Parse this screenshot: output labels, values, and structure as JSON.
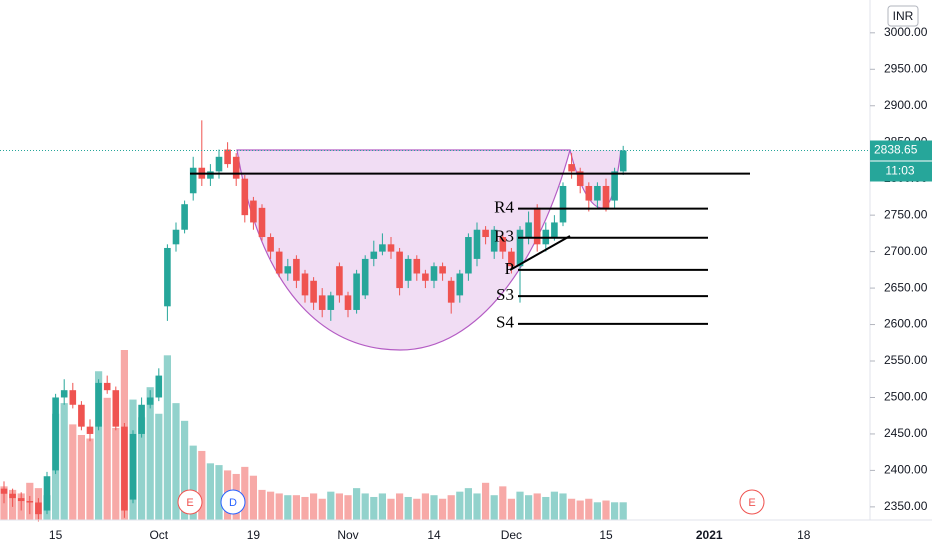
{
  "chart_data": {
    "type": "candlestick",
    "currency": "INR",
    "countdown": "11:03",
    "up_color": "#26a69a",
    "down_color": "#ef5350",
    "ylim": [
      2332,
      3045
    ],
    "yticks": [
      {
        "value": 2350,
        "label": "2350.00"
      },
      {
        "value": 2400,
        "label": "2400.00"
      },
      {
        "value": 2450,
        "label": "2450.00"
      },
      {
        "value": 2500,
        "label": "2500.00"
      },
      {
        "value": 2550,
        "label": "2550.00"
      },
      {
        "value": 2600,
        "label": "2600.00"
      },
      {
        "value": 2650,
        "label": "2650.00"
      },
      {
        "value": 2700,
        "label": "2700.00"
      },
      {
        "value": 2750,
        "label": "2750.00"
      },
      {
        "value": 2800,
        "label": "2800.00"
      },
      {
        "value": 2850,
        "label": "2850.00"
      },
      {
        "value": 2900,
        "label": "2900.00"
      },
      {
        "value": 2950,
        "label": "2950.00"
      },
      {
        "value": 3000,
        "label": "3000.00"
      }
    ],
    "categories": [
      null,
      null,
      null,
      null,
      null,
      null,
      "15",
      null,
      null,
      null,
      null,
      null,
      null,
      null,
      null,
      null,
      null,
      null,
      "Oct",
      null,
      null,
      null,
      null,
      null,
      null,
      null,
      null,
      null,
      null,
      "19",
      null,
      null,
      null,
      null,
      null,
      null,
      null,
      null,
      null,
      null,
      "Nov",
      null,
      null,
      null,
      null,
      null,
      null,
      null,
      null,
      null,
      "14",
      null,
      null,
      null,
      null,
      null,
      null,
      null,
      null,
      "Dec",
      null,
      null,
      null,
      null,
      null,
      null,
      null,
      null,
      null,
      null,
      "15",
      null,
      null,
      null,
      null,
      null,
      null,
      null,
      null,
      null,
      null,
      null,
      "2021",
      null,
      null,
      null,
      null,
      null,
      null,
      null,
      null,
      null,
      null,
      "18"
    ],
    "open": [
      2375,
      2368,
      2362,
      2358,
      2356,
      2345,
      2400,
      2500,
      2510,
      2490,
      2460,
      2460,
      2520,
      2510,
      2460,
      2360,
      2450,
      2490,
      2500,
      2625,
      2710,
      2730,
      2780,
      2815,
      2800,
      2810,
      2840,
      2830,
      2800,
      2770,
      2760,
      2720,
      2700,
      2670,
      2690,
      2670,
      2660,
      2640,
      2620,
      2680,
      2640,
      2620,
      2640,
      2690,
      2700,
      2710,
      2700,
      2660,
      2690,
      2670,
      2660,
      2680,
      2660,
      2640,
      2670,
      2690,
      2730,
      2700,
      2720,
      2700,
      2680,
      2720,
      2760,
      2710,
      2720,
      2740,
      2820,
      2810,
      2790,
      2770,
      2790,
      2770,
      2810,
      null,
      null,
      null,
      null,
      null,
      null,
      null,
      null,
      null,
      null,
      null,
      null,
      null,
      null,
      null,
      null,
      null,
      null,
      null,
      null,
      null
    ],
    "high": [
      2385,
      2375,
      2370,
      2365,
      2362,
      2398,
      2505,
      2525,
      2520,
      2495,
      2470,
      2525,
      2530,
      2515,
      2465,
      2455,
      2500,
      2510,
      2540,
      2710,
      2740,
      2770,
      2830,
      2880,
      2820,
      2840,
      2850,
      2835,
      2805,
      2775,
      2765,
      2725,
      2705,
      2690,
      2695,
      2675,
      2665,
      2650,
      2645,
      2685,
      2645,
      2675,
      2695,
      2715,
      2725,
      2720,
      2705,
      2695,
      2695,
      2675,
      2685,
      2685,
      2665,
      2675,
      2725,
      2740,
      2735,
      2735,
      2725,
      2705,
      2735,
      2755,
      2765,
      2740,
      2750,
      2795,
      2835,
      2815,
      2795,
      2795,
      2800,
      2815,
      2845,
      null,
      null,
      null,
      null,
      null,
      null,
      null,
      null,
      null,
      null,
      null,
      null,
      null,
      null,
      null,
      null,
      null,
      null,
      null,
      null,
      null
    ],
    "low": [
      2355,
      2350,
      2345,
      2340,
      2330,
      2340,
      2395,
      2490,
      2485,
      2455,
      2440,
      2455,
      2505,
      2455,
      2335,
      2355,
      2445,
      2485,
      2495,
      2605,
      2700,
      2725,
      2770,
      2790,
      2790,
      2800,
      2815,
      2790,
      2740,
      2730,
      2715,
      2690,
      2665,
      2660,
      2650,
      2630,
      2620,
      2610,
      2605,
      2630,
      2610,
      2615,
      2635,
      2680,
      2695,
      2690,
      2640,
      2650,
      2660,
      2650,
      2650,
      2660,
      2615,
      2630,
      2660,
      2680,
      2710,
      2690,
      2690,
      2670,
      2630,
      2710,
      2700,
      2700,
      2715,
      2735,
      2800,
      2780,
      2755,
      2760,
      2755,
      2760,
      2805,
      null,
      null,
      null,
      null,
      null,
      null,
      null,
      null,
      null,
      null,
      null,
      null,
      null,
      null,
      null,
      null,
      null,
      null,
      null,
      null,
      null
    ],
    "close": [
      2368,
      2362,
      2358,
      2356,
      2340,
      2392,
      2500,
      2510,
      2490,
      2460,
      2450,
      2520,
      2510,
      2460,
      2345,
      2450,
      2490,
      2500,
      2530,
      2705,
      2730,
      2765,
      2815,
      2800,
      2810,
      2830,
      2820,
      2800,
      2750,
      2740,
      2720,
      2700,
      2670,
      2680,
      2660,
      2640,
      2630,
      2620,
      2640,
      2640,
      2620,
      2670,
      2690,
      2700,
      2710,
      2700,
      2650,
      2690,
      2670,
      2660,
      2680,
      2670,
      2630,
      2670,
      2720,
      2730,
      2720,
      2730,
      2700,
      2680,
      2730,
      2740,
      2710,
      2730,
      2740,
      2790,
      2810,
      2790,
      2770,
      2790,
      2760,
      2810,
      2838.65,
      null,
      null,
      null,
      null,
      null,
      null,
      null,
      null,
      null,
      null,
      null,
      null,
      null,
      null,
      null,
      null,
      null,
      null,
      null,
      null,
      null
    ],
    "volume": [
      38,
      34,
      30,
      42,
      36,
      28,
      120,
      132,
      108,
      96,
      92,
      168,
      138,
      104,
      192,
      136,
      116,
      150,
      120,
      186,
      132,
      112,
      84,
      78,
      64,
      62,
      56,
      52,
      60,
      50,
      34,
      32,
      30,
      28,
      28,
      26,
      30,
      24,
      32,
      30,
      28,
      36,
      30,
      26,
      30,
      24,
      30,
      26,
      24,
      30,
      28,
      24,
      28,
      32,
      36,
      30,
      42,
      28,
      38,
      24,
      32,
      28,
      30,
      26,
      32,
      30,
      24,
      22,
      24,
      20,
      22,
      20,
      20,
      null,
      null,
      null,
      null,
      null,
      null,
      null,
      null,
      null,
      null,
      null,
      null,
      null,
      null,
      null,
      null,
      null,
      null,
      null,
      null,
      null
    ],
    "resistance": 2807,
    "pivots": [
      {
        "label": "R4",
        "value": 2759
      },
      {
        "label": "R3",
        "value": 2719
      },
      {
        "label": "P",
        "value": 2675
      },
      {
        "label": "S3",
        "value": 2639
      },
      {
        "label": "S4",
        "value": 2601
      }
    ],
    "events": [
      "E",
      "D",
      "E"
    ]
  }
}
